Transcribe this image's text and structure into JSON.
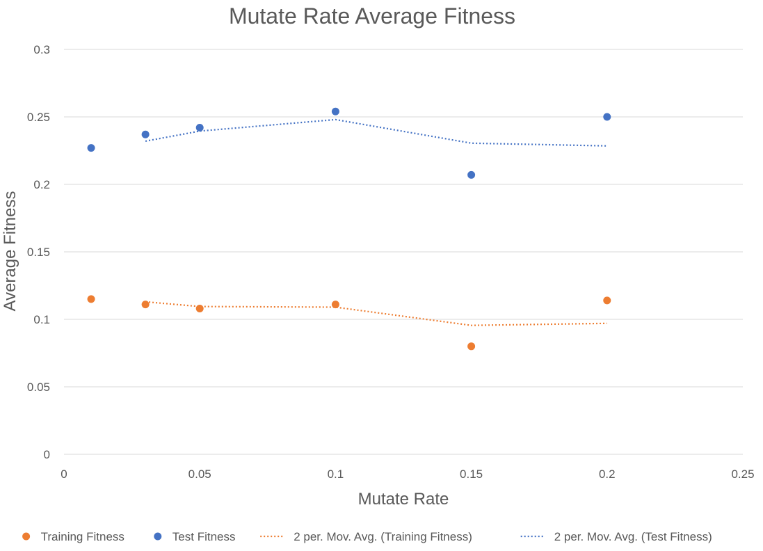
{
  "chart_data": {
    "type": "scatter",
    "title": "Mutate Rate Average Fitness",
    "xlabel": "Mutate Rate",
    "ylabel": "Average Fitness",
    "xlim": [
      0,
      0.25
    ],
    "ylim": [
      0,
      0.3
    ],
    "x_ticks": [
      "0",
      "0.05",
      "0.1",
      "0.15",
      "0.2",
      "0.25"
    ],
    "y_ticks": [
      "0",
      "0.05",
      "0.1",
      "0.15",
      "0.2",
      "0.25",
      "0.3"
    ],
    "grid": "horizontal",
    "legend_position": "bottom",
    "series": [
      {
        "name": "Training Fitness",
        "kind": "scatter",
        "color": "#ed7d31",
        "points": [
          {
            "x": 0.01,
            "y": 0.115
          },
          {
            "x": 0.03,
            "y": 0.111
          },
          {
            "x": 0.05,
            "y": 0.108
          },
          {
            "x": 0.1,
            "y": 0.111
          },
          {
            "x": 0.15,
            "y": 0.08
          },
          {
            "x": 0.2,
            "y": 0.114
          }
        ]
      },
      {
        "name": "Test Fitness",
        "kind": "scatter",
        "color": "#4472c4",
        "points": [
          {
            "x": 0.01,
            "y": 0.227
          },
          {
            "x": 0.03,
            "y": 0.237
          },
          {
            "x": 0.05,
            "y": 0.242
          },
          {
            "x": 0.1,
            "y": 0.254
          },
          {
            "x": 0.15,
            "y": 0.207
          },
          {
            "x": 0.2,
            "y": 0.25
          }
        ]
      },
      {
        "name": "2 per. Mov. Avg. (Training Fitness)",
        "kind": "trendline",
        "color": "#ed7d31",
        "points": [
          {
            "x": 0.03,
            "y": 0.113
          },
          {
            "x": 0.05,
            "y": 0.1095
          },
          {
            "x": 0.1,
            "y": 0.109
          },
          {
            "x": 0.15,
            "y": 0.0955
          },
          {
            "x": 0.2,
            "y": 0.097
          }
        ]
      },
      {
        "name": "2 per. Mov. Avg. (Test Fitness)",
        "kind": "trendline",
        "color": "#4472c4",
        "points": [
          {
            "x": 0.03,
            "y": 0.232
          },
          {
            "x": 0.05,
            "y": 0.2395
          },
          {
            "x": 0.1,
            "y": 0.248
          },
          {
            "x": 0.15,
            "y": 0.2305
          },
          {
            "x": 0.2,
            "y": 0.2285
          }
        ]
      }
    ]
  }
}
